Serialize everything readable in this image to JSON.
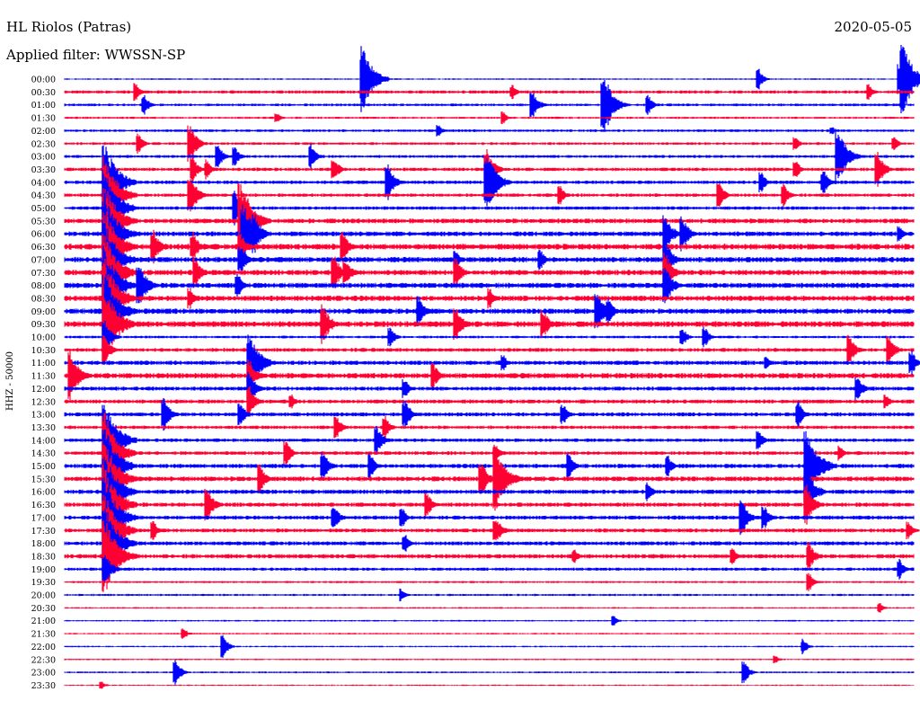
{
  "header": {
    "station": "HL Riolos (Patras)",
    "date": "2020-05-05",
    "filter": "Applied filter: WWSSN-SP"
  },
  "chart_data": {
    "type": "line",
    "title": "HL Riolos (Patras)",
    "subtitle": "Applied filter: WWSSN-SP",
    "date": "2020-05-05",
    "ylabel": "HHZ - 50000",
    "row_minutes": 30,
    "x_minutes": [
      0,
      30
    ],
    "grid": false,
    "colors": [
      "#0000ff",
      "#ff0033"
    ],
    "tick_labels": [
      "00:00",
      "00:30",
      "01:00",
      "01:30",
      "02:00",
      "02:30",
      "03:00",
      "03:30",
      "04:00",
      "04:30",
      "05:00",
      "05:30",
      "06:00",
      "06:30",
      "07:00",
      "07:30",
      "08:00",
      "08:30",
      "09:00",
      "09:30",
      "10:00",
      "10:30",
      "11:00",
      "11:30",
      "12:00",
      "12:30",
      "13:00",
      "13:30",
      "14:00",
      "14:30",
      "15:00",
      "15:30",
      "16:00",
      "16:30",
      "17:00",
      "17:30",
      "18:00",
      "18:30",
      "19:00",
      "19:30",
      "20:00",
      "20:30",
      "21:00",
      "21:30",
      "22:00",
      "22:30",
      "23:00",
      "23:30"
    ],
    "rows": [
      {
        "noise": 0.6,
        "events": [
          [
            10.5,
            2.6
          ],
          [
            10.6,
            1.6
          ],
          [
            24.5,
            0.8
          ],
          [
            29.5,
            1.2
          ],
          [
            29.6,
            2.8
          ]
        ]
      },
      {
        "noise": 1.2,
        "events": [
          [
            2.5,
            0.7
          ],
          [
            15.8,
            0.6
          ],
          [
            28.4,
            0.6
          ]
        ]
      },
      {
        "noise": 1.0,
        "events": [
          [
            2.8,
            0.8
          ],
          [
            16.5,
            1.2
          ],
          [
            19.0,
            2.3
          ],
          [
            19.2,
            1.6
          ],
          [
            20.6,
            0.8
          ]
        ]
      },
      {
        "noise": 0.8,
        "events": [
          [
            7.5,
            0.4
          ],
          [
            15.5,
            0.5
          ]
        ]
      },
      {
        "noise": 1.0,
        "events": [
          [
            13.2,
            0.5
          ],
          [
            27.1,
            0.3
          ]
        ]
      },
      {
        "noise": 1.0,
        "events": [
          [
            2.6,
            0.8
          ],
          [
            4.4,
            1.5
          ],
          [
            25.8,
            0.6
          ],
          [
            29.3,
            0.6
          ]
        ]
      },
      {
        "noise": 1.1,
        "events": [
          [
            5.4,
            1.0
          ],
          [
            6.0,
            0.8
          ],
          [
            8.7,
            1.0
          ],
          [
            27.3,
            2.2
          ]
        ]
      },
      {
        "noise": 1.3,
        "events": [
          [
            4.5,
            1.0
          ],
          [
            5.0,
            0.8
          ],
          [
            9.5,
            1.0
          ],
          [
            14.9,
            1.6
          ],
          [
            25.8,
            0.8
          ],
          [
            28.7,
            1.4
          ]
        ]
      },
      {
        "noise": 1.3,
        "events": [
          [
            1.4,
            3.2
          ],
          [
            11.4,
            1.4
          ],
          [
            14.9,
            2.4
          ],
          [
            15.1,
            1.5
          ],
          [
            24.6,
            0.8
          ],
          [
            26.8,
            1.0
          ]
        ]
      },
      {
        "noise": 1.3,
        "events": [
          [
            1.4,
            3.2
          ],
          [
            4.4,
            1.6
          ],
          [
            17.5,
            0.8
          ],
          [
            23.1,
            1.0
          ],
          [
            25.4,
            0.9
          ]
        ]
      },
      {
        "noise": 1.3,
        "events": [
          [
            1.4,
            3.2
          ],
          [
            6.0,
            1.4
          ]
        ]
      },
      {
        "noise": 1.8,
        "events": [
          [
            1.4,
            3.2
          ],
          [
            6.2,
            3.0
          ],
          [
            6.4,
            2.0
          ]
        ]
      },
      {
        "noise": 1.8,
        "events": [
          [
            1.4,
            3.2
          ],
          [
            6.3,
            2.5
          ],
          [
            6.7,
            1.5
          ],
          [
            21.2,
            1.6
          ],
          [
            21.8,
            1.4
          ],
          [
            29.5,
            0.6
          ]
        ]
      },
      {
        "noise": 2.2,
        "events": [
          [
            1.4,
            3.2
          ],
          [
            3.1,
            1.4
          ],
          [
            4.5,
            1.2
          ],
          [
            6.2,
            1.2
          ],
          [
            9.8,
            1.2
          ]
        ]
      },
      {
        "noise": 2.0,
        "events": [
          [
            1.4,
            3.2
          ],
          [
            6.2,
            1.2
          ],
          [
            13.8,
            0.8
          ],
          [
            16.8,
            0.8
          ],
          [
            21.2,
            1.6
          ]
        ]
      },
      {
        "noise": 2.0,
        "events": [
          [
            1.4,
            3.2
          ],
          [
            4.6,
            1.2
          ],
          [
            9.5,
            1.5
          ],
          [
            9.9,
            1.2
          ],
          [
            13.8,
            1.2
          ],
          [
            21.2,
            1.6
          ]
        ]
      },
      {
        "noise": 2.0,
        "events": [
          [
            1.4,
            3.2
          ],
          [
            2.6,
            1.8
          ],
          [
            6.1,
            1.0
          ],
          [
            21.2,
            1.6
          ]
        ]
      },
      {
        "noise": 2.0,
        "events": [
          [
            1.4,
            3.2
          ],
          [
            4.4,
            0.8
          ],
          [
            15.0,
            0.8
          ]
        ]
      },
      {
        "noise": 2.0,
        "events": [
          [
            1.4,
            3.2
          ],
          [
            12.5,
            1.2
          ],
          [
            18.8,
            1.6
          ],
          [
            19.2,
            1.0
          ]
        ]
      },
      {
        "noise": 2.2,
        "events": [
          [
            1.4,
            3.2
          ],
          [
            9.1,
            1.6
          ],
          [
            13.8,
            1.4
          ],
          [
            16.9,
            1.2
          ]
        ]
      },
      {
        "noise": 1.0,
        "events": [
          [
            1.4,
            1.4
          ],
          [
            11.5,
            0.8
          ],
          [
            21.8,
            0.8
          ],
          [
            22.6,
            0.8
          ]
        ]
      },
      {
        "noise": 1.4,
        "events": [
          [
            1.4,
            1.2
          ],
          [
            27.7,
            1.2
          ],
          [
            29.1,
            1.2
          ]
        ]
      },
      {
        "noise": 1.6,
        "events": [
          [
            6.5,
            2.5
          ],
          [
            15.5,
            0.6
          ],
          [
            24.8,
            0.6
          ],
          [
            29.9,
            1.0
          ]
        ]
      },
      {
        "noise": 2.0,
        "events": [
          [
            0.2,
            2.0
          ],
          [
            6.5,
            1.4
          ],
          [
            13.0,
            1.0
          ]
        ]
      },
      {
        "noise": 1.5,
        "events": [
          [
            6.5,
            1.4
          ],
          [
            12.0,
            0.8
          ],
          [
            28.0,
            1.0
          ]
        ]
      },
      {
        "noise": 1.5,
        "events": [
          [
            6.5,
            1.2
          ],
          [
            8.0,
            0.6
          ],
          [
            29.0,
            0.6
          ]
        ]
      },
      {
        "noise": 1.5,
        "events": [
          [
            3.5,
            1.3
          ],
          [
            6.2,
            1.0
          ],
          [
            12.0,
            1.2
          ],
          [
            17.6,
            0.9
          ],
          [
            25.9,
            1.0
          ]
        ]
      },
      {
        "noise": 1.3,
        "events": [
          [
            9.6,
            1.0
          ],
          [
            11.3,
            0.9
          ]
        ]
      },
      {
        "noise": 1.3,
        "events": [
          [
            1.4,
            3.2
          ],
          [
            11.0,
            1.2
          ],
          [
            24.5,
            0.8
          ]
        ]
      },
      {
        "noise": 1.4,
        "events": [
          [
            1.4,
            3.2
          ],
          [
            7.8,
            1.0
          ],
          [
            15.2,
            0.8
          ],
          [
            27.4,
            0.6
          ]
        ]
      },
      {
        "noise": 1.6,
        "events": [
          [
            1.4,
            3.2
          ],
          [
            9.1,
            1.2
          ],
          [
            10.8,
            1.0
          ],
          [
            17.8,
            1.0
          ],
          [
            21.3,
            0.8
          ],
          [
            26.2,
            3.0
          ]
        ]
      },
      {
        "noise": 1.8,
        "events": [
          [
            1.4,
            3.2
          ],
          [
            6.9,
            1.2
          ],
          [
            14.7,
            1.4
          ],
          [
            15.2,
            2.6
          ]
        ]
      },
      {
        "noise": 1.6,
        "events": [
          [
            1.4,
            3.2
          ],
          [
            20.6,
            0.8
          ],
          [
            26.2,
            2.0
          ]
        ]
      },
      {
        "noise": 1.6,
        "events": [
          [
            1.4,
            3.2
          ],
          [
            5.0,
            1.4
          ],
          [
            12.8,
            1.0
          ],
          [
            26.2,
            1.6
          ]
        ]
      },
      {
        "noise": 1.5,
        "events": [
          [
            1.4,
            3.2
          ],
          [
            9.5,
            1.0
          ],
          [
            11.9,
            0.8
          ],
          [
            23.9,
            1.4
          ],
          [
            24.7,
            1.0
          ]
        ]
      },
      {
        "noise": 1.5,
        "events": [
          [
            1.4,
            3.2
          ],
          [
            3.1,
            0.8
          ],
          [
            15.2,
            1.2
          ],
          [
            29.8,
            0.8
          ]
        ]
      },
      {
        "noise": 1.5,
        "events": [
          [
            1.4,
            3.2
          ],
          [
            12.0,
            0.8
          ]
        ]
      },
      {
        "noise": 1.6,
        "events": [
          [
            1.4,
            3.2
          ],
          [
            18.0,
            0.6
          ],
          [
            23.6,
            0.8
          ],
          [
            26.3,
            1.2
          ]
        ]
      },
      {
        "noise": 1.2,
        "events": [
          [
            1.4,
            1.4
          ],
          [
            29.5,
            0.8
          ]
        ]
      },
      {
        "noise": 0.8,
        "events": [
          [
            26.3,
            0.8
          ]
        ]
      },
      {
        "noise": 0.8,
        "events": [
          [
            11.9,
            0.5
          ]
        ]
      },
      {
        "noise": 0.6,
        "events": [
          [
            28.8,
            0.4
          ]
        ]
      },
      {
        "noise": 0.6,
        "events": [
          [
            19.4,
            0.4
          ]
        ]
      },
      {
        "noise": 0.6,
        "events": [
          [
            4.2,
            0.5
          ]
        ]
      },
      {
        "noise": 0.6,
        "events": [
          [
            5.6,
            0.9
          ],
          [
            26.1,
            0.6
          ]
        ]
      },
      {
        "noise": 0.6,
        "events": [
          [
            25.1,
            0.3
          ]
        ]
      },
      {
        "noise": 0.7,
        "events": [
          [
            3.9,
            1.0
          ],
          [
            24.0,
            0.9
          ]
        ]
      },
      {
        "noise": 0.5,
        "events": [
          [
            1.3,
            0.3
          ]
        ]
      }
    ]
  }
}
